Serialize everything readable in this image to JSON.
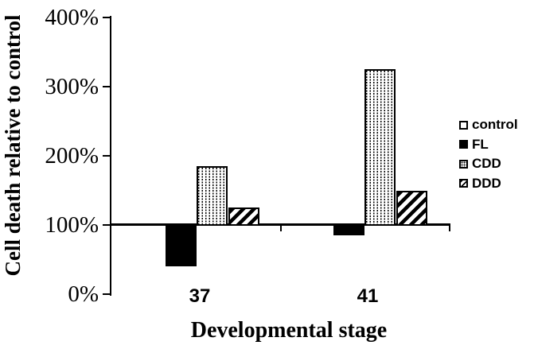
{
  "figure": {
    "background": "#ffffff",
    "ink": "#000000"
  },
  "chart_data": {
    "type": "bar",
    "title": "",
    "xlabel": "Developmental stage",
    "ylabel": "Cell death relative to control",
    "categories": [
      "37",
      "41"
    ],
    "series": [
      {
        "name": "control",
        "pattern": "open-white",
        "values": [
          100,
          100
        ]
      },
      {
        "name": "FL",
        "pattern": "solid-black",
        "values": [
          40,
          85
        ]
      },
      {
        "name": "CDD",
        "pattern": "stipple-dots",
        "values": [
          185,
          325
        ]
      },
      {
        "name": "DDD",
        "pattern": "diagonal-hatch",
        "values": [
          125,
          150
        ]
      }
    ],
    "ylim": [
      0,
      400
    ],
    "yticks": [
      {
        "value": 400,
        "label": "400%"
      },
      {
        "value": 300,
        "label": "300%"
      },
      {
        "value": 200,
        "label": "200%"
      },
      {
        "value": 100,
        "label": "100%"
      },
      {
        "value": 0,
        "label": "0%"
      }
    ],
    "baseline_value": 100,
    "legend_position": "right",
    "grid": false
  }
}
